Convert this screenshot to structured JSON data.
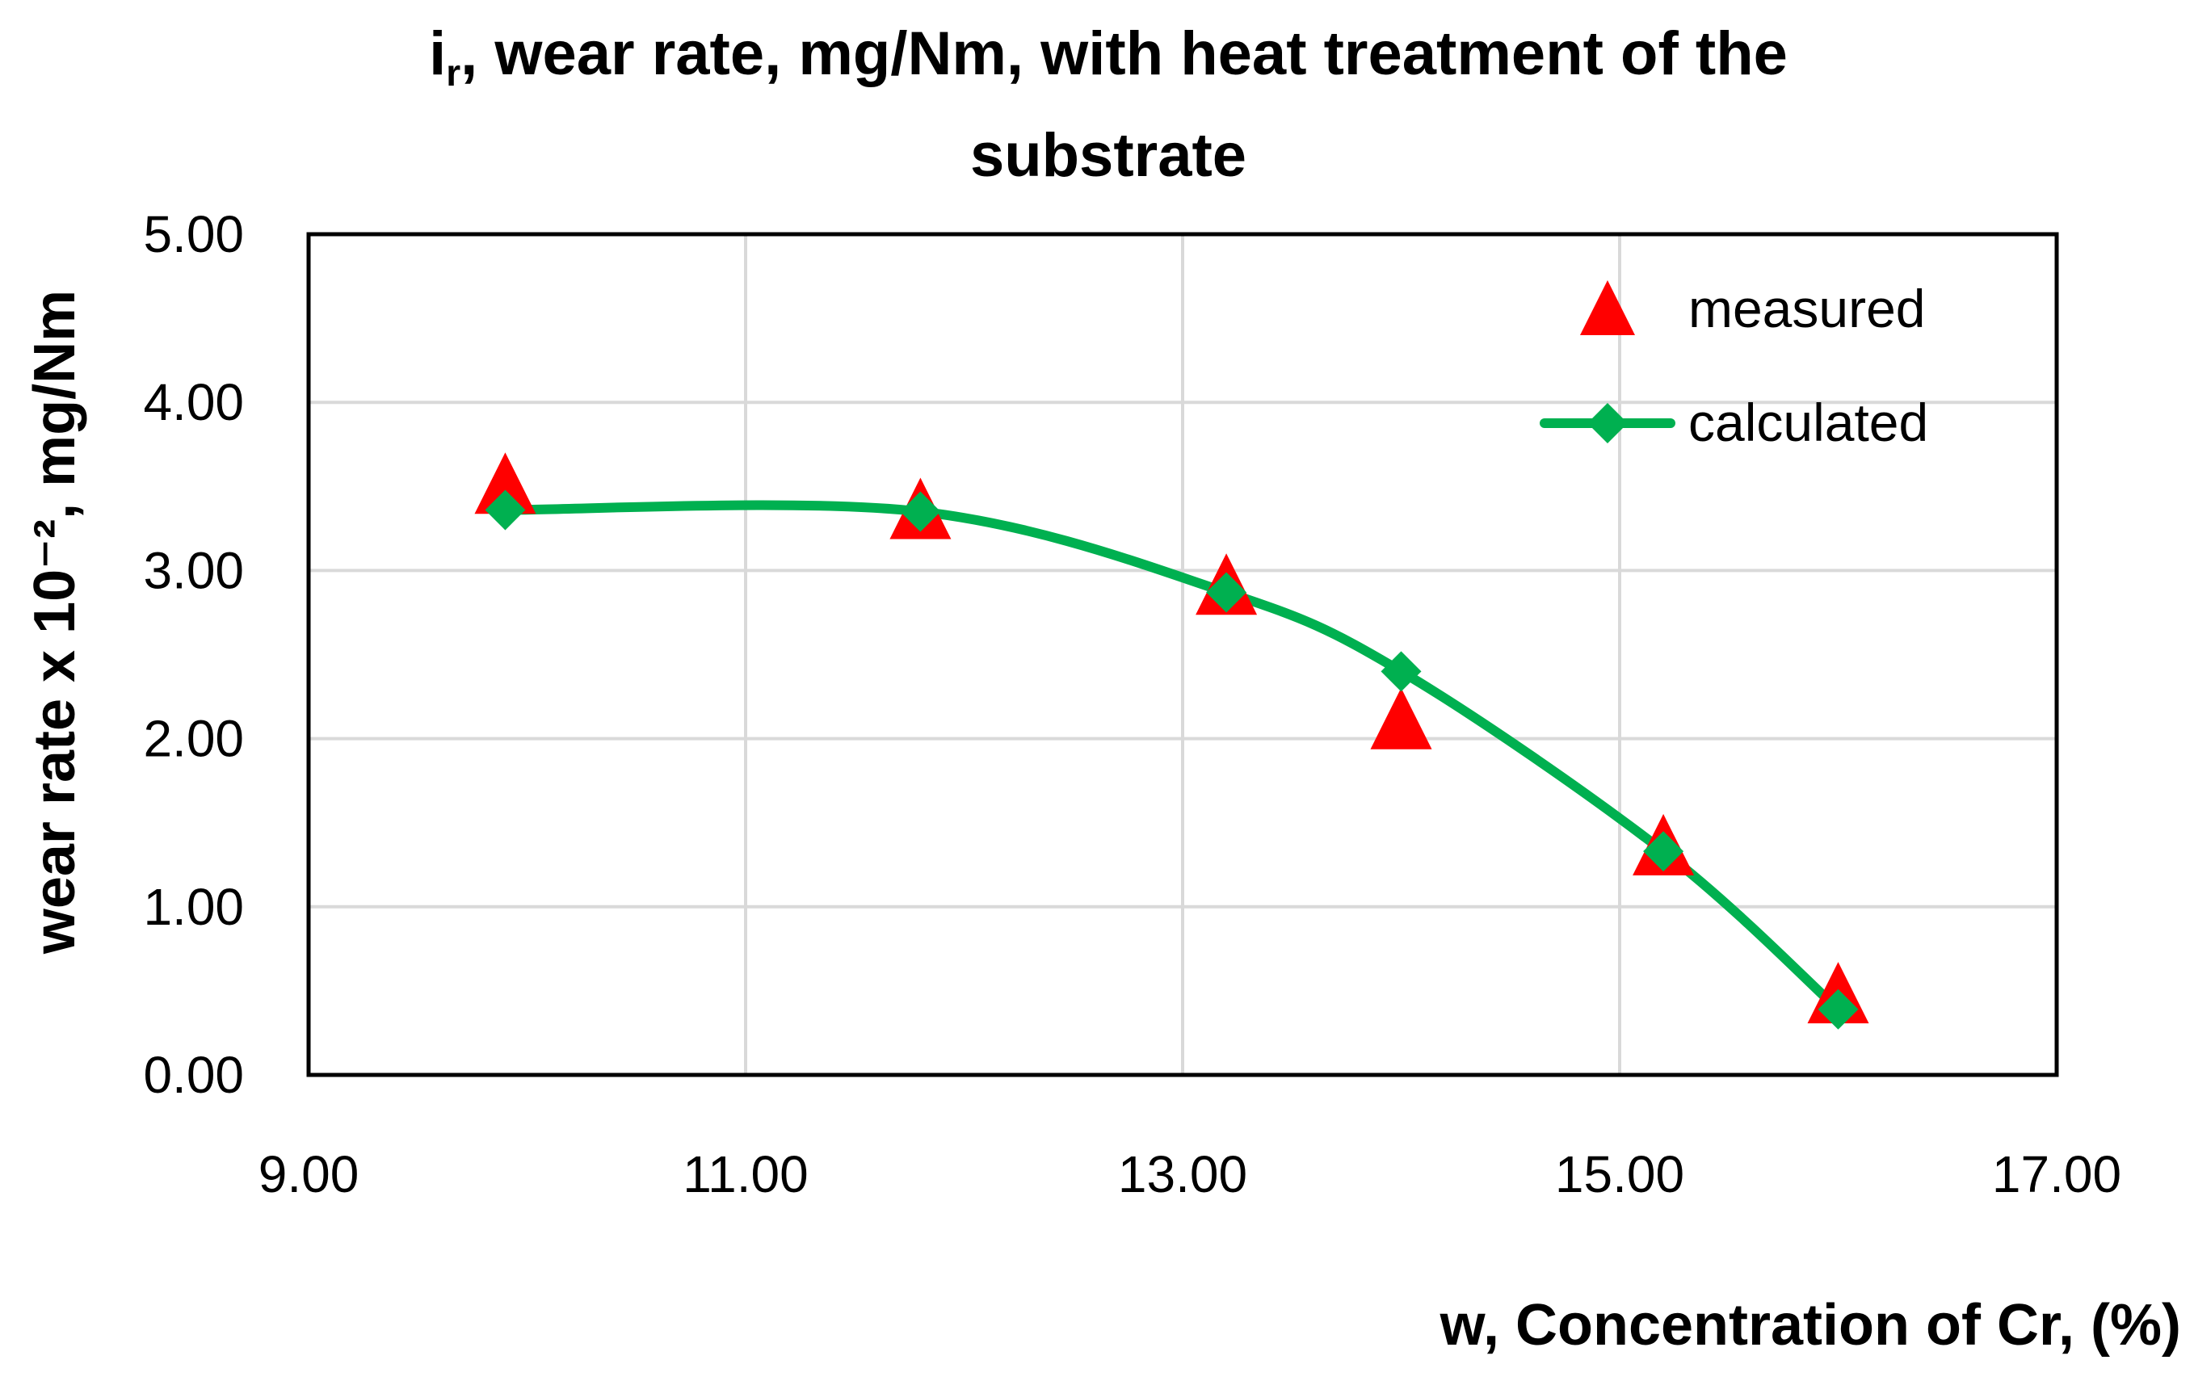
{
  "chart_data": {
    "type": "scatter",
    "title_main": "i",
    "title_sub": "r",
    "title_rest": ", wear rate, mg/Nm, with heat treatment of the",
    "title_line2": "substrate",
    "xlabel": "w, Concentration of Cr, (%)",
    "ylabel": "wear rate x 10⁻², mg/Nm",
    "xlim": [
      9,
      17
    ],
    "ylim": [
      0,
      5
    ],
    "x_ticks": [
      9,
      11,
      13,
      15,
      17
    ],
    "y_ticks": [
      0,
      1,
      2,
      3,
      4,
      5
    ],
    "x_tick_labels": [
      "9.00",
      "11.00",
      "13.00",
      "15.00",
      "17.00"
    ],
    "y_tick_labels": [
      "0.00",
      "1.00",
      "2.00",
      "3.00",
      "4.00",
      "5.00"
    ],
    "grid": true,
    "legend_position": "top-right",
    "series": [
      {
        "name": "measured",
        "marker": "triangle",
        "line": false,
        "color": "#ff0000",
        "x": [
          9.9,
          11.8,
          13.2,
          14.0,
          15.2,
          16.0
        ],
        "y": [
          3.5,
          3.35,
          2.9,
          2.1,
          1.35,
          0.47
        ]
      },
      {
        "name": "calculated",
        "marker": "diamond",
        "line": true,
        "color": "#00b050",
        "x": [
          9.9,
          11.8,
          13.2,
          14.0,
          15.2,
          16.0
        ],
        "y": [
          3.36,
          3.35,
          2.87,
          2.4,
          1.33,
          0.39
        ]
      }
    ]
  }
}
